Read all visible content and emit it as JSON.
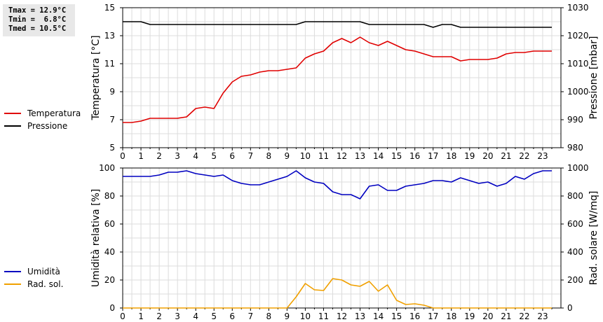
{
  "stats": {
    "lines": [
      "Tmax = 12.9°C",
      "Tmin =  6.8°C",
      "Tmed = 10.5°C"
    ]
  },
  "legend_top": [
    {
      "label": "Temperatura",
      "color": "#e00000"
    },
    {
      "label": "Pressione",
      "color": "#000000"
    }
  ],
  "legend_bottom": [
    {
      "label": "Umidità",
      "color": "#0000c0"
    },
    {
      "label": "Rad. sol.",
      "color": "#f0a000"
    }
  ],
  "chart_data": [
    {
      "type": "line",
      "xlabel": "",
      "x_ticks": [
        "0",
        "1",
        "2",
        "3",
        "4",
        "5",
        "6",
        "7",
        "8",
        "9",
        "10",
        "11",
        "12",
        "13",
        "14",
        "15",
        "16",
        "17",
        "18",
        "19",
        "20",
        "21",
        "22",
        "23"
      ],
      "xlim": [
        0,
        24
      ],
      "ylabel": "Temperatura [°C]",
      "ylim": [
        5,
        15
      ],
      "y_ticks": [
        5,
        7,
        9,
        11,
        13,
        15
      ],
      "y2label": "Pressione [mbar]",
      "y2lim": [
        980,
        1030
      ],
      "y2_ticks": [
        980,
        990,
        1000,
        1010,
        1020,
        1030
      ],
      "grid": true,
      "series": [
        {
          "name": "Temperatura",
          "axis": "left",
          "color": "#e00000",
          "x": [
            0,
            0.5,
            1,
            1.5,
            2,
            2.5,
            3,
            3.5,
            4,
            4.5,
            5,
            5.5,
            6,
            6.5,
            7,
            7.5,
            8,
            8.5,
            9,
            9.5,
            10,
            10.5,
            11,
            11.5,
            12,
            12.5,
            13,
            13.5,
            14,
            14.5,
            15,
            15.5,
            16,
            16.5,
            17,
            17.5,
            18,
            18.5,
            19,
            19.5,
            20,
            20.5,
            21,
            21.5,
            22,
            22.5,
            23,
            23.5
          ],
          "values": [
            6.8,
            6.8,
            6.9,
            7.1,
            7.1,
            7.1,
            7.1,
            7.2,
            7.8,
            7.9,
            7.8,
            8.9,
            9.7,
            10.1,
            10.2,
            10.4,
            10.5,
            10.5,
            10.6,
            10.7,
            11.4,
            11.7,
            11.9,
            12.5,
            12.8,
            12.5,
            12.9,
            12.5,
            12.3,
            12.6,
            12.3,
            12.0,
            11.9,
            11.7,
            11.5,
            11.5,
            11.5,
            11.2,
            11.3,
            11.3,
            11.3,
            11.4,
            11.7,
            11.8,
            11.8,
            11.9,
            11.9,
            11.9
          ]
        },
        {
          "name": "Pressione",
          "axis": "right",
          "color": "#000000",
          "x": [
            0,
            1,
            1.5,
            2,
            3,
            4,
            5,
            6,
            7,
            8,
            9,
            9.5,
            10,
            11,
            12,
            13,
            13.5,
            14,
            15,
            16,
            16.5,
            17,
            17.5,
            18,
            18.5,
            19,
            20,
            21,
            22,
            23,
            23.5
          ],
          "values": [
            1025,
            1025,
            1024,
            1024,
            1024,
            1024,
            1024,
            1024,
            1024,
            1024,
            1024,
            1024,
            1025,
            1025,
            1025,
            1025,
            1024,
            1024,
            1024,
            1024,
            1024,
            1023,
            1024,
            1024,
            1023,
            1023,
            1023,
            1023,
            1023,
            1023,
            1023
          ]
        }
      ]
    },
    {
      "type": "line",
      "xlabel": "",
      "x_ticks": [
        "0",
        "1",
        "2",
        "3",
        "4",
        "5",
        "6",
        "7",
        "8",
        "9",
        "10",
        "11",
        "12",
        "13",
        "14",
        "15",
        "16",
        "17",
        "18",
        "19",
        "20",
        "21",
        "22",
        "23"
      ],
      "xlim": [
        0,
        24
      ],
      "ylabel": "Umidità relativa [%]",
      "ylim": [
        0,
        100
      ],
      "y_ticks": [
        0,
        20,
        40,
        60,
        80,
        100
      ],
      "y2label": "Rad. solare [W/mq]",
      "y2lim": [
        0,
        1000
      ],
      "y2_ticks": [
        0,
        200,
        400,
        600,
        800,
        1000
      ],
      "grid": true,
      "series": [
        {
          "name": "Umidità",
          "axis": "left",
          "color": "#0000c0",
          "x": [
            0,
            0.5,
            1,
            1.5,
            2,
            2.5,
            3,
            3.5,
            4,
            4.5,
            5,
            5.5,
            6,
            6.5,
            7,
            7.5,
            8,
            8.5,
            9,
            9.5,
            10,
            10.5,
            11,
            11.5,
            12,
            12.5,
            13,
            13.5,
            14,
            14.5,
            15,
            15.5,
            16,
            16.5,
            17,
            17.5,
            18,
            18.5,
            19,
            19.5,
            20,
            20.5,
            21,
            21.5,
            22,
            22.5,
            23,
            23.5
          ],
          "values": [
            94,
            94,
            94,
            94,
            95,
            97,
            97,
            98,
            96,
            95,
            94,
            95,
            91,
            89,
            88,
            88,
            90,
            92,
            94,
            98,
            93,
            90,
            89,
            83,
            81,
            81,
            78,
            87,
            88,
            84,
            84,
            87,
            88,
            89,
            91,
            91,
            90,
            93,
            91,
            89,
            90,
            87,
            89,
            94,
            92,
            96,
            98,
            98
          ]
        },
        {
          "name": "Rad. sol.",
          "axis": "right",
          "color": "#f0a000",
          "x": [
            0,
            1,
            2,
            3,
            4,
            5,
            6,
            7,
            8,
            9,
            9.5,
            10,
            10.5,
            11,
            11.5,
            12,
            12.5,
            13,
            13.5,
            14,
            14.5,
            15,
            15.5,
            16,
            16.5,
            17,
            18,
            19,
            20,
            21,
            22,
            23,
            23.5
          ],
          "values": [
            0,
            0,
            0,
            0,
            0,
            0,
            0,
            0,
            0,
            0,
            80,
            175,
            130,
            125,
            210,
            200,
            165,
            155,
            190,
            120,
            165,
            55,
            25,
            30,
            20,
            0,
            0,
            0,
            0,
            0,
            0,
            0,
            0
          ]
        }
      ]
    }
  ]
}
